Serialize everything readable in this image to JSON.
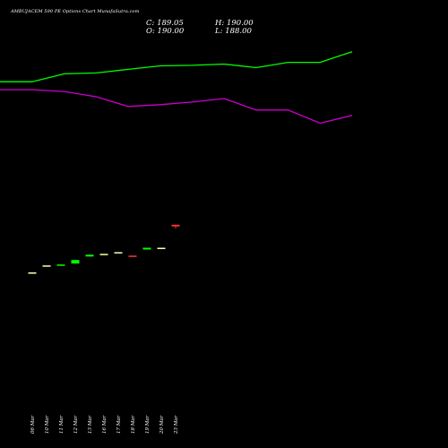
{
  "header": {
    "title": "AMBUJACEM 590  PE Options  Chart MunafaSutra.com",
    "close_text": "C: 189.05",
    "open_text": "O: 190.00",
    "high_text": "H: 190.00",
    "low_text": "L: 188.00"
  },
  "colors": {
    "background": "#000000",
    "upper_band": "#00ff00",
    "lower_band": "#cc00cc",
    "up_candle": "#00ff00",
    "down_candle": "#ff3333",
    "doji": "#ffffaa"
  },
  "chart_data": {
    "type": "candlestick",
    "dates": [
      "06 Mar",
      "10 Mar",
      "11 Mar",
      "12 Mar",
      "13 Mar",
      "16 Mar",
      "17 Mar",
      "18 Mar",
      "19 Mar",
      "20 Mar",
      "23 Mar"
    ],
    "candles": [
      {
        "date": "06 Mar",
        "open": 163.0,
        "close": 163.0,
        "high": 163.0,
        "low": 163.0
      },
      {
        "date": "10 Mar",
        "open": 167.0,
        "close": 167.0,
        "high": 167.0,
        "low": 167.0
      },
      {
        "date": "11 Mar",
        "open": 167.0,
        "close": 167.5,
        "high": 167.5,
        "low": 167.0
      },
      {
        "date": "12 Mar",
        "open": 168.0,
        "close": 170.0,
        "high": 170.0,
        "low": 168.0
      },
      {
        "date": "13 Mar",
        "open": 172.0,
        "close": 173.0,
        "high": 173.0,
        "low": 172.0
      },
      {
        "date": "16 Mar",
        "open": 173.5,
        "close": 173.5,
        "high": 173.5,
        "low": 173.5
      },
      {
        "date": "17 Mar",
        "open": 174.5,
        "close": 174.5,
        "high": 174.5,
        "low": 174.5
      },
      {
        "date": "18 Mar",
        "open": 172.5,
        "close": 172.0,
        "high": 172.5,
        "low": 172.0
      },
      {
        "date": "19 Mar",
        "open": 176.0,
        "close": 177.0,
        "high": 177.0,
        "low": 176.0
      },
      {
        "date": "20 Mar",
        "open": 177.0,
        "close": 177.0,
        "high": 177.0,
        "low": 177.0
      },
      {
        "date": "23 Mar",
        "open": 190.0,
        "close": 189.05,
        "high": 190.0,
        "low": 188.0
      }
    ],
    "bands": {
      "x": [
        0,
        1,
        2,
        3,
        4,
        5,
        6,
        7,
        8,
        9,
        10,
        11
      ],
      "upper": [
        271.0,
        271.0,
        275.5,
        276.0,
        278.0,
        280.0,
        280.3,
        281.0,
        279.0,
        282.0,
        282.0,
        288.0
      ],
      "lower": [
        266.5,
        266.5,
        265.5,
        262.5,
        257.0,
        258.0,
        259.5,
        261.5,
        255.0,
        255.0,
        247.5,
        252.0
      ]
    },
    "ylim": [
      94.0,
      297.0
    ]
  }
}
